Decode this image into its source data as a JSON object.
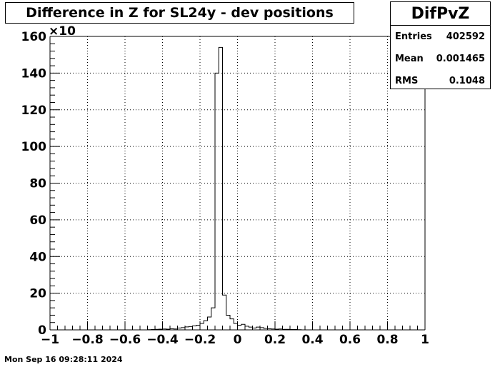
{
  "chart_data": {
    "type": "bar",
    "title": "Difference in Z for SL24y - dev positions",
    "xlabel": "",
    "ylabel": "",
    "xlim": [
      -1,
      1
    ],
    "ylim": [
      0,
      160
    ],
    "y_multiplier": "×10",
    "grid": true,
    "x_ticks": [
      -1,
      -0.8,
      -0.6,
      -0.4,
      -0.2,
      0,
      0.2,
      0.4,
      0.6,
      0.8,
      1
    ],
    "x_tick_labels": [
      "−1",
      "−0.8",
      "−0.6",
      "−0.4",
      "−0.2",
      "0",
      "0.2",
      "0.4",
      "0.6",
      "0.8",
      "1"
    ],
    "y_ticks": [
      0,
      20,
      40,
      60,
      80,
      100,
      120,
      140,
      160
    ],
    "y_tick_labels": [
      "0",
      "20",
      "40",
      "60",
      "80",
      "100",
      "120",
      "140",
      "160"
    ],
    "bin_edges_start": -1,
    "bin_width": 0.02,
    "values": [
      0,
      0,
      0,
      0,
      0,
      0,
      0,
      0,
      0,
      0,
      0,
      0,
      0,
      0,
      0,
      0,
      0,
      0,
      0,
      0,
      0,
      0,
      0,
      0,
      0,
      0,
      0.1,
      0.2,
      0.3,
      0.4,
      0.5,
      0.4,
      0.6,
      0.5,
      1,
      1.2,
      1.6,
      1.8,
      2.2,
      2.5,
      3.5,
      5,
      7,
      12,
      140,
      154,
      19,
      8,
      6,
      3.5,
      2.5,
      3,
      2,
      1.5,
      1,
      1.5,
      1.2,
      0.8,
      0.6,
      0.5,
      0.4,
      0.5,
      0.3,
      0.3,
      0.2,
      0.2,
      0.1,
      0,
      0,
      0,
      0,
      0,
      0,
      0,
      0,
      0,
      0,
      0,
      0,
      0,
      0,
      0,
      0,
      0,
      0,
      0,
      0,
      0,
      0,
      0,
      0,
      0,
      0,
      0,
      0,
      0,
      0,
      0,
      0,
      0
    ]
  },
  "stats": {
    "name": "DifPvZ",
    "entries_label": "Entries",
    "entries_value": "402592",
    "mean_label": "Mean",
    "mean_value": "0.001465",
    "rms_label": "RMS",
    "rms_value": "0.1048"
  },
  "footer": {
    "timestamp": "Mon Sep 16 09:28:11 2024"
  },
  "colors": {
    "line": "#000000",
    "grid": "#000000",
    "background": "#ffffff"
  }
}
